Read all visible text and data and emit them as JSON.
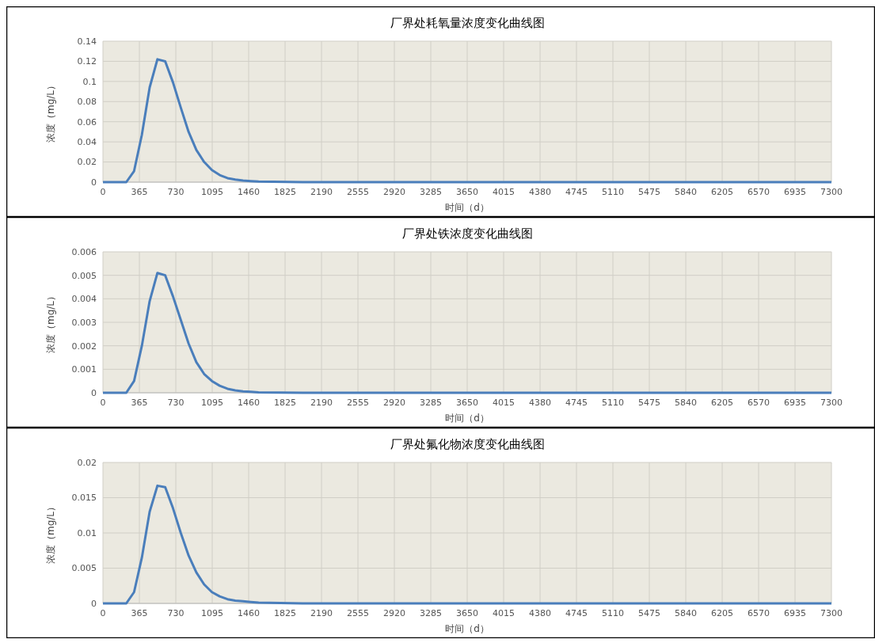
{
  "chart_data": [
    {
      "type": "line",
      "title": "厂界处耗氧量浓度变化曲线图",
      "xlabel": "时间（d）",
      "ylabel": "浓度（mg/L）",
      "grid": true,
      "xlim": [
        0,
        7300
      ],
      "xticks": [
        0,
        365,
        730,
        1095,
        1460,
        1825,
        2190,
        2555,
        2920,
        3285,
        3650,
        4015,
        4380,
        4745,
        5110,
        5475,
        5840,
        6205,
        6570,
        6935,
        7300
      ],
      "ylim": [
        0,
        0.14
      ],
      "yticks": [
        0,
        0.02,
        0.04,
        0.06,
        0.08,
        0.1,
        0.12,
        0.14
      ],
      "series": [
        {
          "color": "#4a7ebb",
          "x": [
            0,
            78,
            156,
            234,
            312,
            390,
            468,
            546,
            624,
            702,
            780,
            858,
            936,
            1014,
            1092,
            1170,
            1248,
            1326,
            1404,
            1482,
            1560,
            2000,
            7300
          ],
          "values": [
            0,
            0,
            0,
            0,
            0.011,
            0.047,
            0.094,
            0.122,
            0.12,
            0.099,
            0.074,
            0.05,
            0.032,
            0.02,
            0.012,
            0.007,
            0.004,
            0.0025,
            0.0015,
            0.001,
            0.0006,
            0,
            0
          ]
        }
      ]
    },
    {
      "type": "line",
      "title": "厂界处铁浓度变化曲线图",
      "xlabel": "时间（d）",
      "ylabel": "浓度（mg/L）",
      "grid": true,
      "xlim": [
        0,
        7300
      ],
      "xticks": [
        0,
        365,
        730,
        1095,
        1460,
        1825,
        2190,
        2555,
        2920,
        3285,
        3650,
        4015,
        4380,
        4745,
        5110,
        5475,
        5840,
        6205,
        6570,
        6935,
        7300
      ],
      "ylim": [
        0,
        0.006
      ],
      "yticks": [
        0,
        0.001,
        0.002,
        0.003,
        0.004,
        0.005,
        0.006
      ],
      "series": [
        {
          "color": "#4a7ebb",
          "x": [
            0,
            78,
            156,
            234,
            312,
            390,
            468,
            546,
            624,
            702,
            780,
            858,
            936,
            1014,
            1092,
            1170,
            1248,
            1326,
            1404,
            1482,
            1560,
            2000,
            7300
          ],
          "values": [
            0,
            0,
            0,
            0,
            0.0005,
            0.002,
            0.0039,
            0.0051,
            0.005,
            0.0041,
            0.0031,
            0.0021,
            0.0013,
            0.0008,
            0.0005,
            0.0003,
            0.00017,
            0.0001,
            6e-05,
            4e-05,
            2e-05,
            0,
            0
          ]
        }
      ]
    },
    {
      "type": "line",
      "title": "厂界处氟化物浓度变化曲线图",
      "xlabel": "时间（d）",
      "ylabel": "浓度（mg/L）",
      "grid": true,
      "xlim": [
        0,
        7300
      ],
      "xticks": [
        0,
        365,
        730,
        1095,
        1460,
        1825,
        2190,
        2555,
        2920,
        3285,
        3650,
        4015,
        4380,
        4745,
        5110,
        5475,
        5840,
        6205,
        6570,
        6935,
        7300
      ],
      "ylim": [
        0,
        0.02
      ],
      "yticks": [
        0,
        0.005,
        0.01,
        0.015,
        0.02
      ],
      "series": [
        {
          "color": "#4a7ebb",
          "x": [
            0,
            78,
            156,
            234,
            312,
            390,
            468,
            546,
            624,
            702,
            780,
            858,
            936,
            1014,
            1092,
            1170,
            1248,
            1326,
            1404,
            1482,
            1560,
            2000,
            7300
          ],
          "values": [
            0,
            0,
            0,
            0,
            0.0016,
            0.0065,
            0.013,
            0.0167,
            0.0165,
            0.0135,
            0.01,
            0.0068,
            0.0044,
            0.0027,
            0.0016,
            0.001,
            0.0006,
            0.0004,
            0.0003,
            0.0002,
            0.0001,
            0,
            0
          ]
        }
      ]
    }
  ]
}
